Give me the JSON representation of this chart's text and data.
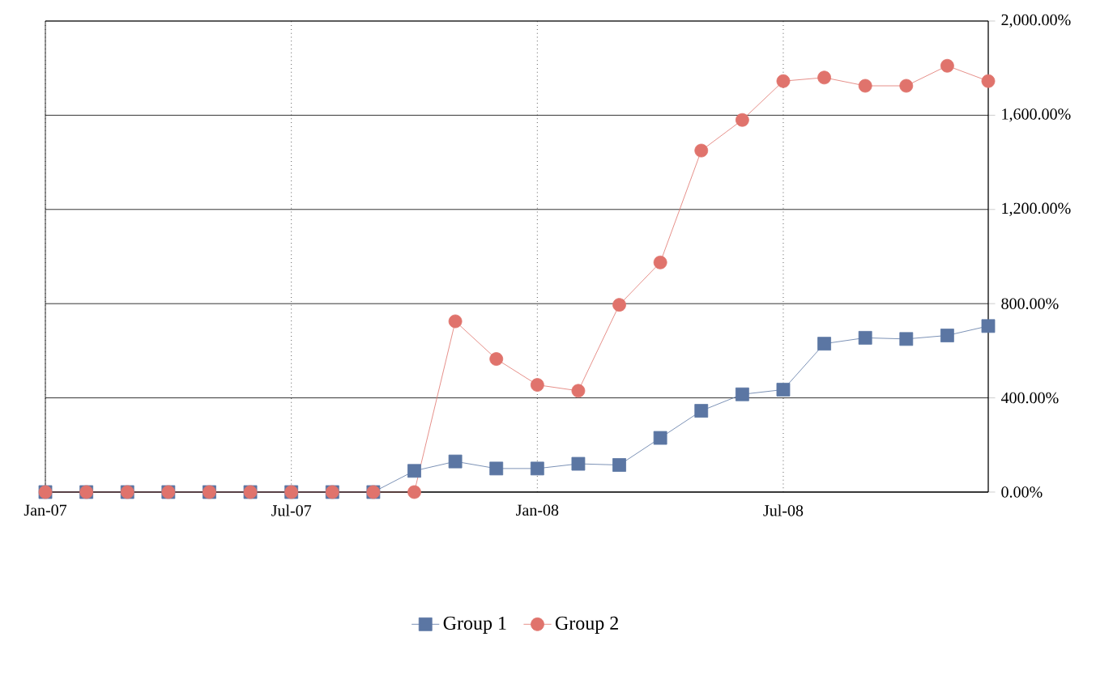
{
  "chart_data": {
    "type": "line",
    "x": [
      "2007-01",
      "2007-02",
      "2007-03",
      "2007-04",
      "2007-05",
      "2007-06",
      "2007-07",
      "2007-08",
      "2007-09",
      "2007-10",
      "2007-11",
      "2007-12",
      "2008-01",
      "2008-02",
      "2008-03",
      "2008-04",
      "2008-05",
      "2008-06",
      "2008-07",
      "2008-08",
      "2008-09",
      "2008-10",
      "2008-11",
      "2008-12"
    ],
    "series": [
      {
        "name": "Group 1",
        "color": "#5b76a3",
        "marker": "square",
        "values": [
          0,
          0,
          0,
          0,
          0,
          0,
          0,
          0,
          0,
          90,
          130,
          100,
          100,
          120,
          115,
          230,
          345,
          415,
          435,
          630,
          655,
          650,
          665,
          705
        ]
      },
      {
        "name": "Group 2",
        "color": "#e0736c",
        "marker": "circle",
        "values": [
          0,
          0,
          0,
          0,
          0,
          0,
          0,
          0,
          0,
          0,
          725,
          565,
          455,
          430,
          795,
          975,
          1450,
          1580,
          1745,
          1760,
          1725,
          1725,
          1810,
          1745
        ]
      }
    ],
    "xlim": [
      "2007-01",
      "2008-12"
    ],
    "xticks": [
      {
        "value": "2007-01",
        "label": "Jan-07"
      },
      {
        "value": "2007-07",
        "label": "Jul-07"
      },
      {
        "value": "2008-01",
        "label": "Jan-08"
      },
      {
        "value": "2008-07",
        "label": "Jul-08"
      }
    ],
    "ylim": [
      0,
      2000
    ],
    "yticks": [
      {
        "value": 0,
        "label": "0.00%"
      },
      {
        "value": 400,
        "label": "400.00%"
      },
      {
        "value": 800,
        "label": "800.00%"
      },
      {
        "value": 1200,
        "label": "1,200.00%"
      },
      {
        "value": 1600,
        "label": "1,600.00%"
      },
      {
        "value": 2000,
        "label": "2,000.00%"
      }
    ],
    "grid": true,
    "legend": "bottom",
    "line_style": "solid"
  }
}
